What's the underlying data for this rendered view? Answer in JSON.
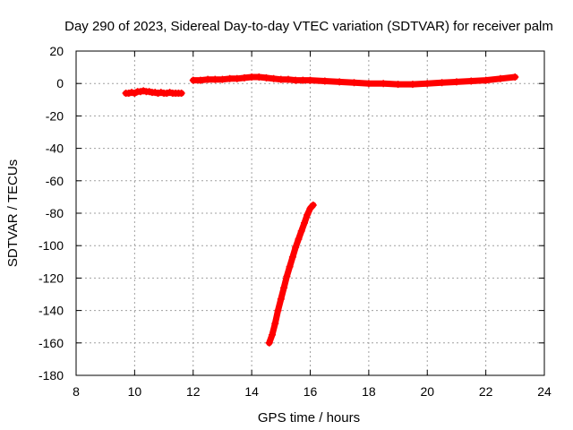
{
  "chart_data": {
    "type": "scatter",
    "title": "Day 290 of 2023, Sidereal Day-to-day VTEC variation (SDTVAR) for receiver palm",
    "xlabel": "GPS time / hours",
    "ylabel": "SDTVAR / TECUs",
    "xlim": [
      8,
      24
    ],
    "ylim": [
      -180,
      20
    ],
    "xticks": [
      8,
      10,
      12,
      14,
      16,
      18,
      20,
      22,
      24
    ],
    "yticks": [
      20,
      0,
      -20,
      -40,
      -60,
      -80,
      -100,
      -120,
      -140,
      -160,
      -180
    ],
    "grid": true,
    "legend": "none",
    "marker": "plus",
    "color": "#ff0000",
    "series": [
      {
        "x": [
          9.7,
          9.8,
          9.9,
          10.0,
          10.1,
          10.2,
          10.3,
          10.4,
          10.5,
          10.6,
          10.7,
          10.8,
          10.9,
          11.0,
          11.1,
          11.2,
          11.3,
          11.4,
          11.5,
          11.6
        ],
        "y": [
          -6,
          -6,
          -5.5,
          -6,
          -5,
          -5,
          -4.5,
          -5,
          -5,
          -5.5,
          -5.5,
          -6,
          -5.5,
          -6,
          -6,
          -5.5,
          -6,
          -6,
          -6,
          -6
        ]
      },
      {
        "x": [
          12.0,
          12.25,
          12.5,
          12.75,
          13.0,
          13.25,
          13.5,
          13.75,
          14.0,
          14.25,
          14.5,
          14.75,
          15.0,
          15.25,
          15.5,
          15.75,
          16.0,
          16.5,
          17.0,
          17.5,
          18.0,
          18.5,
          19.0,
          19.5,
          20.0,
          20.5,
          21.0,
          21.5,
          22.0,
          22.5,
          23.0
        ],
        "y": [
          2,
          2,
          2.5,
          2.5,
          2.5,
          3,
          3,
          3.5,
          4,
          4,
          3.5,
          3,
          2.5,
          2.5,
          2,
          2,
          2,
          1.5,
          1,
          0.5,
          0,
          0,
          -0.5,
          -0.5,
          0,
          0.5,
          1,
          1.5,
          2,
          3,
          4
        ]
      },
      {
        "x": [
          14.6,
          14.7,
          14.8,
          14.9,
          15.0,
          15.1,
          15.2,
          15.3,
          15.4,
          15.5,
          15.6,
          15.7,
          15.8,
          15.9,
          16.0,
          16.1
        ],
        "y": [
          -160,
          -155,
          -148,
          -140,
          -133,
          -126,
          -119,
          -113,
          -107,
          -101,
          -96,
          -91,
          -86,
          -81,
          -77,
          -75
        ]
      }
    ]
  }
}
